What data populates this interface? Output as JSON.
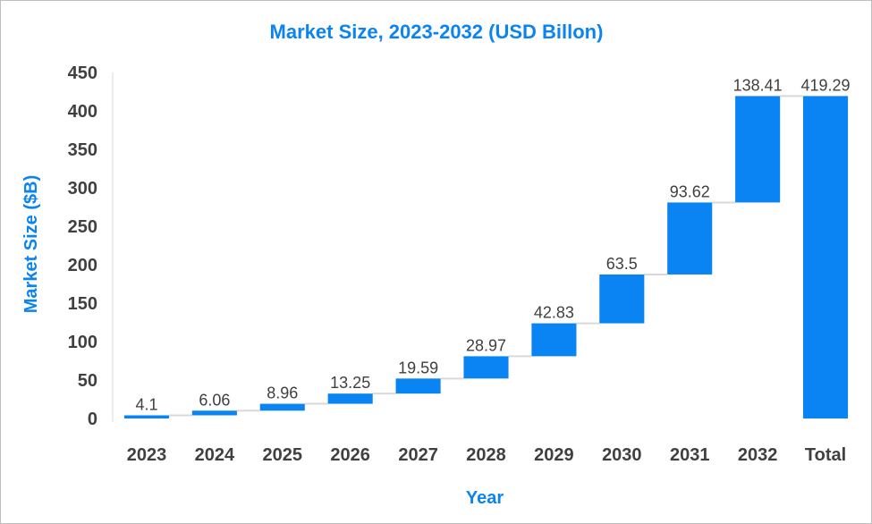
{
  "chart_data": {
    "type": "bar",
    "subtype": "waterfall",
    "title": "Market Size, 2023-2032 (USD Billon)",
    "xlabel": "Year",
    "ylabel": "Market Size ($B)",
    "categories": [
      "2023",
      "2024",
      "2025",
      "2026",
      "2027",
      "2028",
      "2029",
      "2030",
      "2031",
      "2032",
      "Total"
    ],
    "values": [
      4.1,
      6.06,
      8.96,
      13.25,
      19.59,
      28.97,
      42.83,
      63.5,
      93.62,
      138.41,
      419.29
    ],
    "data_labels": [
      "4.1",
      "6.06",
      "8.96",
      "13.25",
      "19.59",
      "28.97",
      "42.83",
      "63.5",
      "93.62",
      "138.41",
      "419.29"
    ],
    "total_category": "Total",
    "ylim": [
      0,
      450
    ],
    "yticks": [
      "0",
      "50",
      "100",
      "150",
      "200",
      "250",
      "300",
      "350",
      "400",
      "450"
    ],
    "grid": false,
    "legend": "none",
    "colors": {
      "bar": "#0b84f3",
      "title": "#0b84f3",
      "axis_title": "#0b84f3",
      "connector": "#d9d9d9",
      "text": "#404040"
    }
  }
}
